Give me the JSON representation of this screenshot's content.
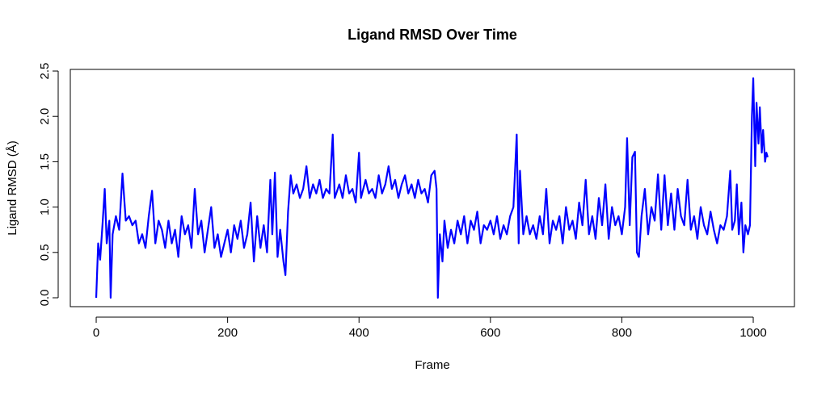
{
  "chart_data": {
    "type": "line",
    "title": "Ligand RMSD Over Time",
    "x_label": "Frame",
    "y_label": "Ligand RMSD (Å)",
    "xlim": [
      -39.4,
      1062.7
    ],
    "ylim": [
      -0.098,
      2.518
    ],
    "xticks": [
      0,
      200,
      400,
      600,
      800,
      1000
    ],
    "yticks": [
      {
        "value": 0,
        "label": "0.0"
      },
      0.5,
      {
        "value": 1,
        "label": "1.0"
      },
      1.5,
      {
        "value": 2,
        "label": "2.0"
      },
      2.5
    ],
    "series": [
      {
        "color": "#0000ff",
        "x": [
          0,
          3,
          6,
          10,
          13,
          16,
          20,
          22,
          25,
          30,
          35,
          40,
          45,
          50,
          55,
          60,
          65,
          70,
          75,
          80,
          85,
          90,
          95,
          100,
          105,
          110,
          115,
          120,
          125,
          130,
          135,
          140,
          145,
          150,
          155,
          160,
          165,
          170,
          175,
          180,
          185,
          190,
          195,
          200,
          205,
          210,
          215,
          220,
          225,
          230,
          235,
          240,
          245,
          250,
          255,
          260,
          265,
          268,
          272,
          276,
          280,
          285,
          288,
          292,
          296,
          300,
          305,
          310,
          315,
          320,
          325,
          330,
          335,
          340,
          345,
          350,
          355,
          360,
          363,
          370,
          375,
          380,
          385,
          390,
          395,
          400,
          403,
          410,
          415,
          420,
          425,
          430,
          435,
          440,
          445,
          450,
          455,
          460,
          465,
          470,
          475,
          480,
          485,
          490,
          495,
          500,
          505,
          510,
          515,
          518,
          520,
          523,
          527,
          530,
          535,
          540,
          545,
          550,
          555,
          560,
          565,
          570,
          575,
          580,
          585,
          590,
          595,
          600,
          605,
          610,
          615,
          620,
          625,
          630,
          635,
          640,
          643,
          645,
          650,
          655,
          660,
          665,
          670,
          675,
          680,
          685,
          690,
          695,
          700,
          705,
          710,
          715,
          720,
          725,
          730,
          735,
          740,
          745,
          750,
          755,
          760,
          765,
          770,
          775,
          780,
          785,
          790,
          795,
          800,
          805,
          808,
          812,
          816,
          820,
          823,
          826,
          830,
          835,
          840,
          845,
          850,
          855,
          860,
          865,
          870,
          875,
          880,
          885,
          890,
          895,
          900,
          905,
          910,
          915,
          920,
          925,
          930,
          935,
          940,
          945,
          950,
          955,
          960,
          965,
          968,
          972,
          975,
          978,
          982,
          985,
          988,
          992,
          995,
          998,
          1000,
          1003,
          1005,
          1008,
          1010,
          1013,
          1015,
          1018,
          1020,
          1022
        ],
        "values": [
          0.0,
          0.6,
          0.42,
          0.85,
          1.2,
          0.6,
          0.85,
          0.0,
          0.7,
          0.9,
          0.75,
          1.37,
          0.85,
          0.9,
          0.8,
          0.85,
          0.6,
          0.7,
          0.55,
          0.9,
          1.18,
          0.6,
          0.85,
          0.75,
          0.55,
          0.85,
          0.6,
          0.75,
          0.45,
          0.9,
          0.7,
          0.8,
          0.55,
          1.2,
          0.7,
          0.85,
          0.5,
          0.75,
          1.0,
          0.55,
          0.7,
          0.45,
          0.6,
          0.75,
          0.5,
          0.8,
          0.65,
          0.85,
          0.55,
          0.7,
          1.05,
          0.4,
          0.9,
          0.55,
          0.8,
          0.5,
          1.3,
          0.7,
          1.38,
          0.45,
          0.75,
          0.4,
          0.25,
          0.95,
          1.35,
          1.15,
          1.25,
          1.1,
          1.2,
          1.45,
          1.1,
          1.25,
          1.15,
          1.3,
          1.1,
          1.2,
          1.15,
          1.8,
          1.1,
          1.25,
          1.1,
          1.35,
          1.15,
          1.2,
          1.05,
          1.6,
          1.1,
          1.3,
          1.15,
          1.2,
          1.1,
          1.35,
          1.15,
          1.25,
          1.45,
          1.2,
          1.3,
          1.1,
          1.25,
          1.35,
          1.15,
          1.25,
          1.1,
          1.3,
          1.15,
          1.2,
          1.05,
          1.35,
          1.4,
          1.2,
          0.0,
          0.7,
          0.4,
          0.85,
          0.55,
          0.75,
          0.6,
          0.85,
          0.7,
          0.9,
          0.6,
          0.85,
          0.75,
          0.95,
          0.6,
          0.8,
          0.75,
          0.85,
          0.7,
          0.9,
          0.65,
          0.8,
          0.7,
          0.9,
          1.0,
          1.8,
          0.6,
          1.4,
          0.7,
          0.9,
          0.7,
          0.8,
          0.65,
          0.9,
          0.7,
          1.2,
          0.6,
          0.85,
          0.75,
          0.9,
          0.6,
          1.0,
          0.75,
          0.85,
          0.65,
          1.05,
          0.8,
          1.3,
          0.7,
          0.9,
          0.65,
          1.1,
          0.8,
          1.25,
          0.65,
          1.0,
          0.8,
          0.9,
          0.7,
          1.0,
          1.76,
          0.8,
          1.55,
          1.61,
          0.5,
          0.45,
          0.9,
          1.2,
          0.7,
          1.0,
          0.85,
          1.36,
          0.75,
          1.35,
          0.8,
          1.15,
          0.75,
          1.2,
          0.9,
          0.8,
          1.3,
          0.75,
          0.9,
          0.65,
          1.0,
          0.8,
          0.7,
          0.95,
          0.75,
          0.6,
          0.8,
          0.75,
          0.9,
          1.4,
          0.75,
          0.85,
          1.25,
          0.7,
          1.05,
          0.5,
          0.8,
          0.7,
          0.8,
          2.0,
          2.42,
          1.45,
          2.15,
          1.7,
          2.1,
          1.6,
          1.85,
          1.5,
          1.6,
          1.55
        ]
      }
    ]
  }
}
